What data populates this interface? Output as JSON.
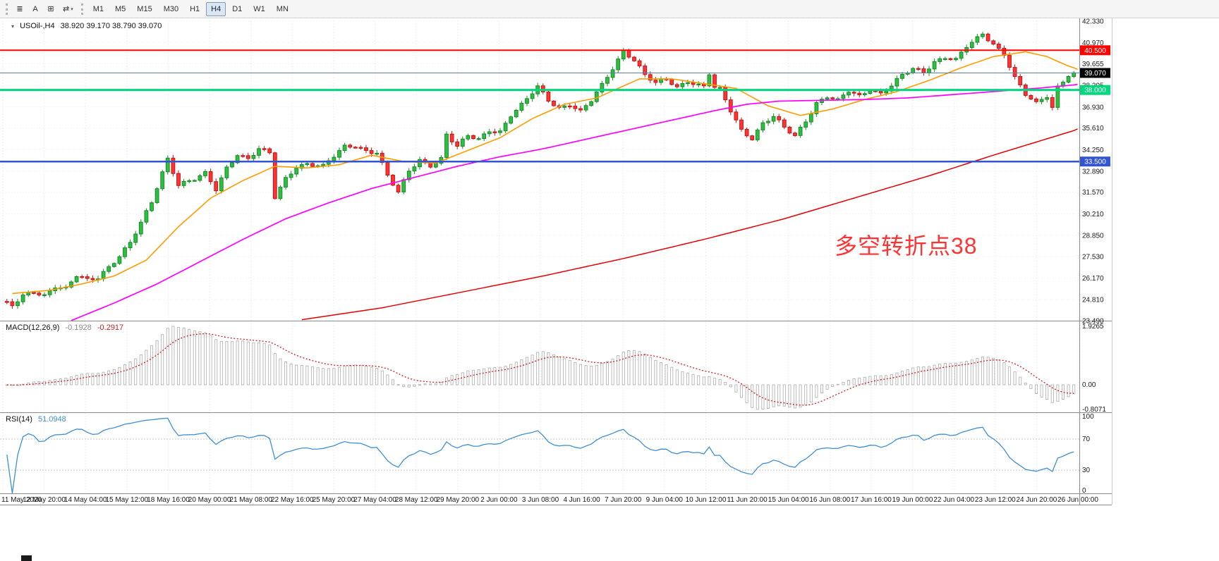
{
  "toolbar": {
    "tools": [
      {
        "name": "objects-list-icon",
        "glyph": "≣"
      },
      {
        "name": "text-tool-icon",
        "glyph": "A"
      },
      {
        "name": "shapes-tool-icon",
        "glyph": "⊞"
      },
      {
        "name": "cursor-tool-icon",
        "glyph": "⇄",
        "caret": "▾"
      }
    ],
    "timeframes": [
      {
        "label": "M1",
        "active": false
      },
      {
        "label": "M5",
        "active": false
      },
      {
        "label": "M15",
        "active": false
      },
      {
        "label": "M30",
        "active": false
      },
      {
        "label": "H1",
        "active": false
      },
      {
        "label": "H4",
        "active": true
      },
      {
        "label": "D1",
        "active": false
      },
      {
        "label": "W1",
        "active": false
      },
      {
        "label": "MN",
        "active": false
      }
    ]
  },
  "chart": {
    "menu_glyph": "▾",
    "symbol_timeframe": "USOil-,H4",
    "ohlc": "38.920 39.170 38.790 39.070"
  },
  "annotation": {
    "text": "多空转折点38",
    "color": "#ff3333"
  },
  "indicators": {
    "macd": {
      "label": "MACD(12,26,9)",
      "value_main": "-0.1928",
      "value_signal": "-0.2917",
      "axis_labels": [
        {
          "value": 1.9265,
          "text": "1.9265"
        },
        {
          "value": 0,
          "text": "0.00"
        },
        {
          "value": -0.8071,
          "text": "-0.8071"
        }
      ]
    },
    "rsi": {
      "label": "RSI(14)",
      "value": "51.0948",
      "axis_labels": [
        {
          "value": 100,
          "text": "100"
        },
        {
          "value": 70,
          "text": "70"
        },
        {
          "value": 30,
          "text": "30"
        },
        {
          "value": 0,
          "text": "0"
        }
      ],
      "levels": [
        70,
        30
      ]
    }
  },
  "price_axis": {
    "labels": [
      "42.330",
      "40.970",
      "39.655",
      "38.295",
      "36.930",
      "35.610",
      "34.250",
      "32.890",
      "31.570",
      "30.210",
      "28.850",
      "27.530",
      "26.170",
      "24.810",
      "23.490"
    ]
  },
  "time_axis": {
    "labels": [
      "11 May 2020",
      "12 May 20:00",
      "14 May 04:00",
      "15 May 12:00",
      "18 May 16:00",
      "20 May 00:00",
      "21 May 08:00",
      "22 May 16:00",
      "25 May 20:00",
      "27 May 04:00",
      "28 May 12:00",
      "29 May 20:00",
      "2 Jun 00:00",
      "3 Jun 08:00",
      "4 Jun 16:00",
      "7 Jun 20:00",
      "9 Jun 04:00",
      "10 Jun 12:00",
      "11 Jun 20:00",
      "15 Jun 04:00",
      "16 Jun 08:00",
      "17 Jun 16:00",
      "19 Jun 00:00",
      "22 Jun 04:00",
      "23 Jun 12:00",
      "24 Jun 20:00",
      "26 Jun 00:00"
    ]
  },
  "hlines": [
    {
      "value": 40.5,
      "label": "40.500",
      "color": "#ff0000",
      "width": 2
    },
    {
      "value": 39.07,
      "label": "39.070",
      "color": "#5a7da0",
      "badge": "#000000",
      "width": 1
    },
    {
      "value": 38.0,
      "label": "38.000",
      "color": "#00d87e",
      "width": 3
    },
    {
      "value": 33.5,
      "label": "33.500",
      "color": "#3355d4",
      "width": 2.5
    }
  ],
  "chart_data": {
    "type": "candlestick",
    "symbol": "USOil-",
    "timeframe": "H4",
    "bars": 200,
    "price_range": [
      23.49,
      42.33
    ],
    "close_path_anchors": [
      [
        0,
        24.7
      ],
      [
        2,
        24.4
      ],
      [
        4,
        25.0
      ],
      [
        6,
        25.3
      ],
      [
        8,
        25.1
      ],
      [
        10,
        25.7
      ],
      [
        12,
        25.5
      ],
      [
        14,
        26.3
      ],
      [
        16,
        26.0
      ],
      [
        18,
        26.2
      ],
      [
        20,
        26.9
      ],
      [
        22,
        27.6
      ],
      [
        24,
        28.4
      ],
      [
        26,
        29.6
      ],
      [
        28,
        30.9
      ],
      [
        30,
        32.8
      ],
      [
        31,
        33.7
      ],
      [
        33,
        32.1
      ],
      [
        36,
        32.4
      ],
      [
        38,
        32.7
      ],
      [
        40,
        31.7
      ],
      [
        42,
        33.1
      ],
      [
        44,
        34.0
      ],
      [
        46,
        33.7
      ],
      [
        48,
        34.3
      ],
      [
        50,
        34.0
      ],
      [
        51,
        31.2
      ],
      [
        53,
        32.4
      ],
      [
        55,
        33.2
      ],
      [
        57,
        33.4
      ],
      [
        60,
        33.2
      ],
      [
        62,
        33.8
      ],
      [
        64,
        34.4
      ],
      [
        66,
        34.5
      ],
      [
        68,
        34.2
      ],
      [
        70,
        34.1
      ],
      [
        72,
        32.6
      ],
      [
        74,
        31.5
      ],
      [
        76,
        32.9
      ],
      [
        78,
        33.6
      ],
      [
        80,
        33.3
      ],
      [
        82,
        33.7
      ],
      [
        83,
        35.2
      ],
      [
        85,
        34.4
      ],
      [
        87,
        35.1
      ],
      [
        89,
        34.9
      ],
      [
        91,
        35.5
      ],
      [
        93,
        35.4
      ],
      [
        95,
        36.4
      ],
      [
        97,
        37.0
      ],
      [
        99,
        37.8
      ],
      [
        100,
        38.2
      ],
      [
        102,
        37.4
      ],
      [
        104,
        36.9
      ],
      [
        106,
        37.1
      ],
      [
        108,
        36.6
      ],
      [
        110,
        37.3
      ],
      [
        112,
        38.3
      ],
      [
        114,
        39.4
      ],
      [
        116,
        40.5
      ],
      [
        118,
        39.9
      ],
      [
        120,
        38.9
      ],
      [
        122,
        38.4
      ],
      [
        124,
        38.7
      ],
      [
        126,
        38.2
      ],
      [
        128,
        38.6
      ],
      [
        130,
        38.3
      ],
      [
        131,
        38.2
      ],
      [
        132,
        39.0
      ],
      [
        133,
        38.1
      ],
      [
        134,
        38.0
      ],
      [
        136,
        36.7
      ],
      [
        138,
        35.5
      ],
      [
        140,
        35.0
      ],
      [
        142,
        35.9
      ],
      [
        144,
        36.3
      ],
      [
        146,
        35.6
      ],
      [
        148,
        35.1
      ],
      [
        150,
        36.1
      ],
      [
        152,
        37.2
      ],
      [
        154,
        37.6
      ],
      [
        156,
        37.3
      ],
      [
        158,
        37.9
      ],
      [
        160,
        37.6
      ],
      [
        162,
        38.1
      ],
      [
        164,
        37.8
      ],
      [
        166,
        38.3
      ],
      [
        168,
        38.9
      ],
      [
        170,
        39.3
      ],
      [
        172,
        39.1
      ],
      [
        174,
        39.8
      ],
      [
        176,
        40.1
      ],
      [
        178,
        39.9
      ],
      [
        180,
        40.7
      ],
      [
        182,
        41.2
      ],
      [
        183,
        41.5
      ],
      [
        185,
        40.9
      ],
      [
        187,
        40.3
      ],
      [
        189,
        38.8
      ],
      [
        191,
        37.7
      ],
      [
        193,
        37.1
      ],
      [
        195,
        37.6
      ],
      [
        196,
        36.9
      ],
      [
        197,
        38.2
      ],
      [
        199,
        39.0
      ],
      [
        200,
        39.07
      ]
    ],
    "ma_fast_anchors": [
      [
        1,
        25.2
      ],
      [
        8,
        25.4
      ],
      [
        14,
        25.8
      ],
      [
        20,
        26.3
      ],
      [
        26,
        27.3
      ],
      [
        32,
        29.4
      ],
      [
        38,
        31.2
      ],
      [
        44,
        32.3
      ],
      [
        50,
        33.2
      ],
      [
        56,
        33.1
      ],
      [
        62,
        33.3
      ],
      [
        68,
        33.9
      ],
      [
        74,
        33.5
      ],
      [
        80,
        33.4
      ],
      [
        86,
        34.2
      ],
      [
        92,
        35.0
      ],
      [
        98,
        36.2
      ],
      [
        104,
        37.1
      ],
      [
        110,
        37.5
      ],
      [
        114,
        38.1
      ],
      [
        118,
        38.7
      ],
      [
        124,
        38.7
      ],
      [
        130,
        38.4
      ],
      [
        136,
        38.1
      ],
      [
        142,
        37.0
      ],
      [
        148,
        36.4
      ],
      [
        154,
        36.8
      ],
      [
        160,
        37.4
      ],
      [
        166,
        37.9
      ],
      [
        172,
        38.6
      ],
      [
        178,
        39.4
      ],
      [
        184,
        40.1
      ],
      [
        190,
        40.4
      ],
      [
        194,
        40.1
      ],
      [
        198,
        39.5
      ],
      [
        200,
        39.3
      ]
    ],
    "ma_mid_anchors": [
      [
        12,
        23.5
      ],
      [
        20,
        24.6
      ],
      [
        28,
        25.8
      ],
      [
        36,
        27.2
      ],
      [
        44,
        28.6
      ],
      [
        52,
        29.9
      ],
      [
        60,
        30.9
      ],
      [
        68,
        31.8
      ],
      [
        76,
        32.5
      ],
      [
        84,
        33.2
      ],
      [
        92,
        33.8
      ],
      [
        100,
        34.3
      ],
      [
        108,
        34.9
      ],
      [
        116,
        35.5
      ],
      [
        124,
        36.1
      ],
      [
        132,
        36.7
      ],
      [
        138,
        37.1
      ],
      [
        144,
        37.3
      ],
      [
        152,
        37.35
      ],
      [
        160,
        37.4
      ],
      [
        168,
        37.5
      ],
      [
        176,
        37.7
      ],
      [
        184,
        37.9
      ],
      [
        192,
        38.1
      ],
      [
        200,
        38.35
      ]
    ],
    "ma_slow_anchors": [
      [
        55,
        23.55
      ],
      [
        70,
        24.3
      ],
      [
        85,
        25.3
      ],
      [
        100,
        26.3
      ],
      [
        115,
        27.4
      ],
      [
        130,
        28.6
      ],
      [
        145,
        29.9
      ],
      [
        160,
        31.4
      ],
      [
        172,
        32.6
      ],
      [
        184,
        33.9
      ],
      [
        200,
        35.55
      ]
    ],
    "colors": {
      "up": "#2fbe41",
      "up_border": "#178c28",
      "down": "#ff3333",
      "down_border": "#bf1717",
      "ma_fast": "#ff9c00",
      "ma_mid": "#ff00ff",
      "ma_slow": "#e60000",
      "macd_hist": "#b4b4b4",
      "macd_signal": "#cc2222",
      "rsi": "#3f8fd2",
      "grid": "#e2e2e2"
    }
  }
}
